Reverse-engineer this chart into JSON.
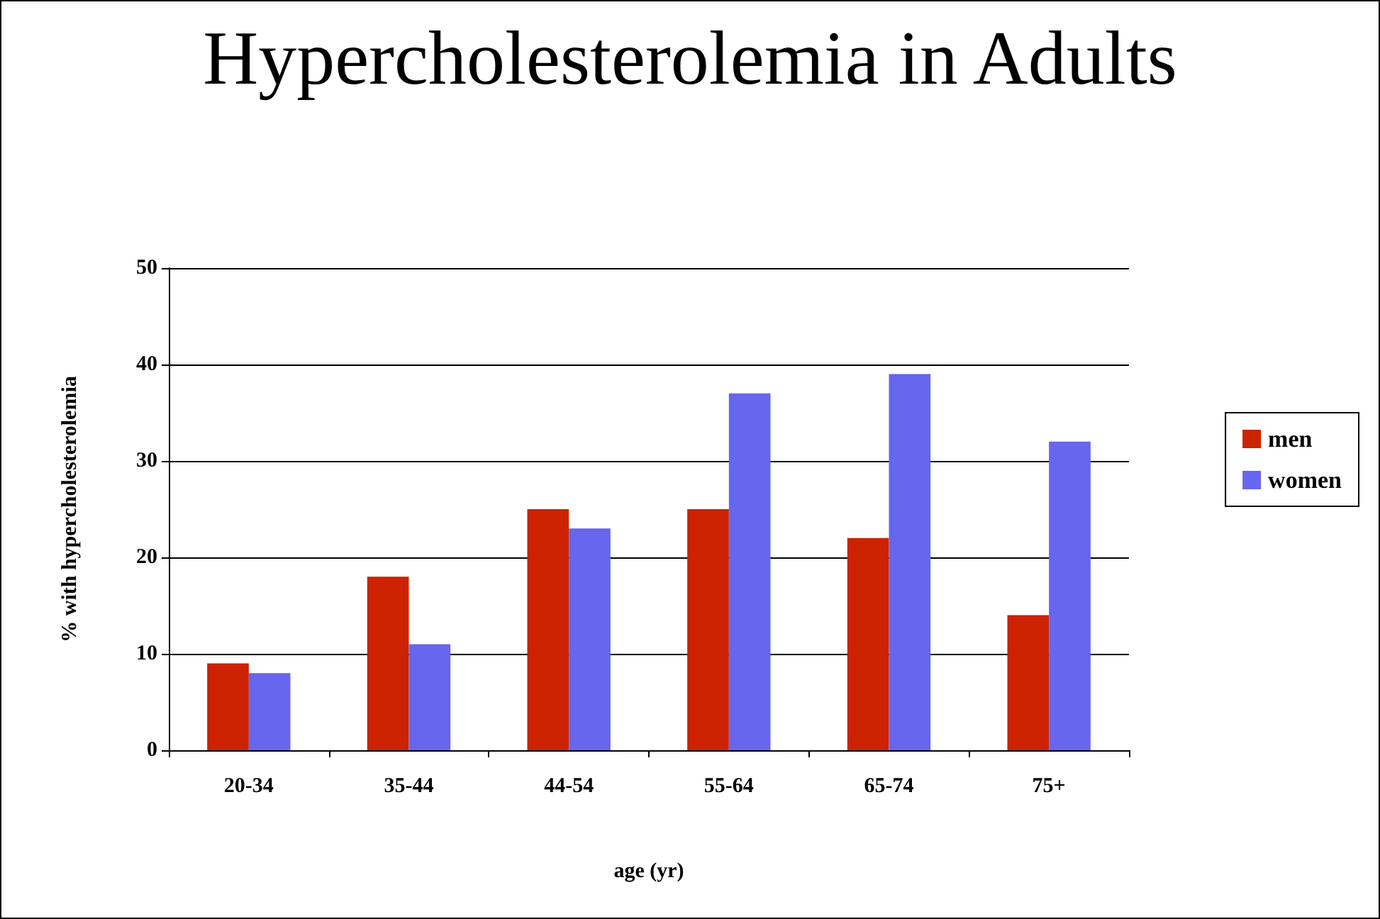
{
  "chart_data": {
    "type": "bar",
    "title": "Hypercholesterolemia in Adults",
    "xlabel": "age (yr)",
    "ylabel": "% with hypercholesterolemia",
    "categories": [
      "20-34",
      "35-44",
      "44-54",
      "55-64",
      "65-74",
      "75+"
    ],
    "series": [
      {
        "name": "men",
        "color": "#cc2200",
        "values": [
          9,
          18,
          25,
          25,
          22,
          14
        ]
      },
      {
        "name": "women",
        "color": "#6666ee",
        "values": [
          8,
          11,
          23,
          37,
          39,
          32
        ]
      }
    ],
    "ylim": [
      0,
      50
    ],
    "yticks": [
      0,
      10,
      20,
      30,
      40,
      50
    ],
    "grid": "y",
    "legend": "right"
  }
}
